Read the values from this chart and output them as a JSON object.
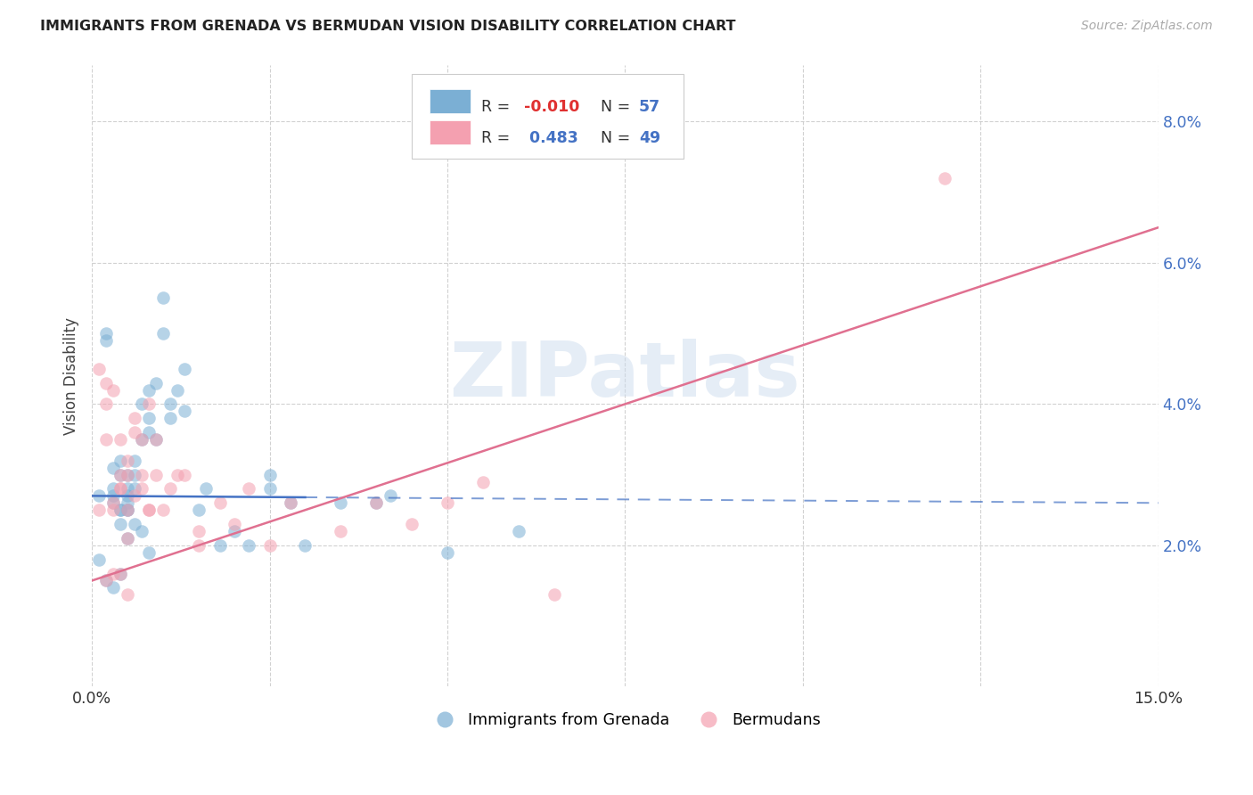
{
  "title": "IMMIGRANTS FROM GRENADA VS BERMUDAN VISION DISABILITY CORRELATION CHART",
  "source": "Source: ZipAtlas.com",
  "ylabel": "Vision Disability",
  "xlim": [
    0.0,
    0.15
  ],
  "ylim": [
    0.0,
    0.088
  ],
  "yticks": [
    0.02,
    0.04,
    0.06,
    0.08
  ],
  "ytick_labels": [
    "2.0%",
    "4.0%",
    "6.0%",
    "8.0%"
  ],
  "xticks": [
    0.0,
    0.025,
    0.05,
    0.075,
    0.1,
    0.125,
    0.15
  ],
  "xtick_labels": [
    "0.0%",
    "",
    "",
    "",
    "",
    "",
    "15.0%"
  ],
  "blue_color": "#7bafd4",
  "pink_color": "#f4a0b0",
  "blue_line_color": "#4472c4",
  "pink_line_color": "#e07090",
  "watermark": "ZIPatlas",
  "R1": -0.01,
  "N1": 57,
  "R2": 0.483,
  "N2": 49,
  "blue_points_x": [
    0.001,
    0.002,
    0.002,
    0.003,
    0.003,
    0.003,
    0.004,
    0.004,
    0.004,
    0.004,
    0.005,
    0.005,
    0.005,
    0.005,
    0.005,
    0.006,
    0.006,
    0.006,
    0.007,
    0.007,
    0.008,
    0.008,
    0.008,
    0.009,
    0.009,
    0.01,
    0.01,
    0.011,
    0.011,
    0.012,
    0.013,
    0.013,
    0.015,
    0.016,
    0.018,
    0.02,
    0.022,
    0.025,
    0.025,
    0.028,
    0.03,
    0.035,
    0.04,
    0.042,
    0.05,
    0.06,
    0.001,
    0.002,
    0.003,
    0.004,
    0.005,
    0.006,
    0.007,
    0.008,
    0.003,
    0.004,
    0.005
  ],
  "blue_points_y": [
    0.027,
    0.05,
    0.049,
    0.028,
    0.031,
    0.027,
    0.025,
    0.023,
    0.03,
    0.032,
    0.028,
    0.025,
    0.03,
    0.027,
    0.026,
    0.032,
    0.028,
    0.03,
    0.035,
    0.04,
    0.042,
    0.038,
    0.036,
    0.035,
    0.043,
    0.05,
    0.055,
    0.038,
    0.04,
    0.042,
    0.039,
    0.045,
    0.025,
    0.028,
    0.02,
    0.022,
    0.02,
    0.028,
    0.03,
    0.026,
    0.02,
    0.026,
    0.026,
    0.027,
    0.019,
    0.022,
    0.018,
    0.015,
    0.014,
    0.016,
    0.021,
    0.023,
    0.022,
    0.019,
    0.026,
    0.025,
    0.025
  ],
  "pink_points_x": [
    0.001,
    0.001,
    0.002,
    0.002,
    0.002,
    0.003,
    0.003,
    0.004,
    0.004,
    0.004,
    0.005,
    0.005,
    0.005,
    0.006,
    0.006,
    0.007,
    0.007,
    0.008,
    0.008,
    0.009,
    0.009,
    0.01,
    0.011,
    0.012,
    0.013,
    0.015,
    0.015,
    0.018,
    0.02,
    0.022,
    0.025,
    0.028,
    0.035,
    0.04,
    0.045,
    0.05,
    0.055,
    0.12,
    0.003,
    0.004,
    0.005,
    0.006,
    0.007,
    0.008,
    0.002,
    0.003,
    0.004,
    0.005,
    0.065
  ],
  "pink_points_y": [
    0.025,
    0.045,
    0.04,
    0.035,
    0.043,
    0.042,
    0.025,
    0.028,
    0.03,
    0.035,
    0.025,
    0.03,
    0.032,
    0.036,
    0.038,
    0.028,
    0.035,
    0.025,
    0.04,
    0.03,
    0.035,
    0.025,
    0.028,
    0.03,
    0.03,
    0.02,
    0.022,
    0.026,
    0.023,
    0.028,
    0.02,
    0.026,
    0.022,
    0.026,
    0.023,
    0.026,
    0.029,
    0.072,
    0.026,
    0.028,
    0.021,
    0.027,
    0.03,
    0.025,
    0.015,
    0.016,
    0.016,
    0.013,
    0.013
  ],
  "blue_line_start_x": 0.0,
  "blue_line_solid_end_x": 0.03,
  "blue_line_end_x": 0.15,
  "blue_line_start_y": 0.027,
  "blue_line_end_y": 0.026,
  "pink_line_start_x": 0.0,
  "pink_line_end_x": 0.15,
  "pink_line_start_y": 0.015,
  "pink_line_end_y": 0.065
}
